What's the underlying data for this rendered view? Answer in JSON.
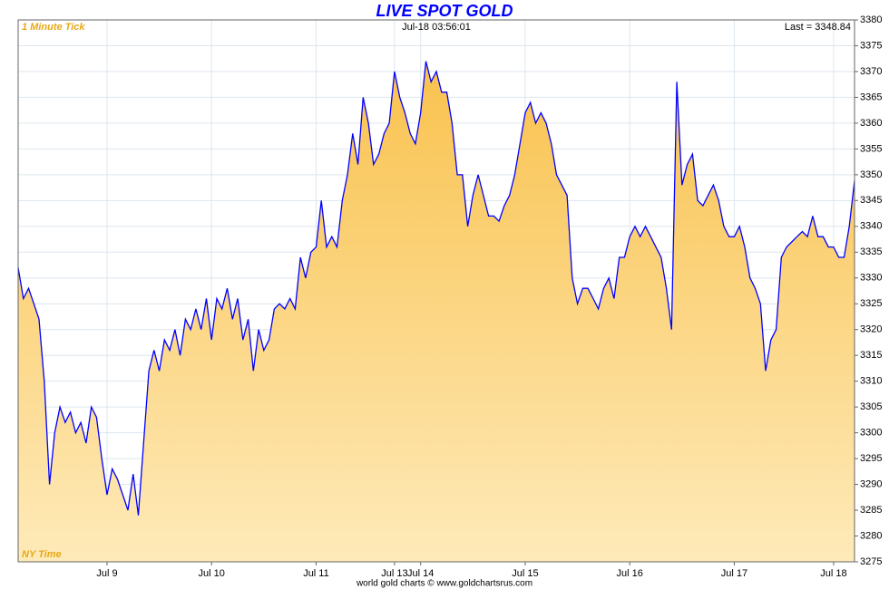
{
  "chart_data": {
    "type": "area",
    "title": "LIVE SPOT GOLD",
    "subtitle": "Jul-18  03:56:01",
    "resolution_label": "1 Minute Tick",
    "last_label": "Last = 3348.84",
    "timezone_label": "NY Time",
    "footer": "world gold charts © www.goldchartsrus.com",
    "color": "#0000ff",
    "fill_top": "#f9c24e",
    "fill_bottom": "#feeab9",
    "grid": true,
    "xlim": [
      0,
      160
    ],
    "xticks": [
      {
        "value": 17,
        "label": "Jul 9"
      },
      {
        "value": 37,
        "label": "Jul 10"
      },
      {
        "value": 57,
        "label": "Jul 11"
      },
      {
        "value": 72,
        "label": "Jul 13"
      },
      {
        "value": 77,
        "label": "Jul 14"
      },
      {
        "value": 97,
        "label": "Jul 15"
      },
      {
        "value": 117,
        "label": "Jul 16"
      },
      {
        "value": 137,
        "label": "Jul 17"
      },
      {
        "value": 156,
        "label": "Jul 18"
      }
    ],
    "ylim": [
      3275,
      3380
    ],
    "yticks": [
      3275,
      3280,
      3285,
      3290,
      3295,
      3300,
      3305,
      3310,
      3315,
      3320,
      3325,
      3330,
      3335,
      3340,
      3345,
      3350,
      3355,
      3360,
      3365,
      3370,
      3375,
      3380
    ],
    "values": [
      3332,
      3326,
      3328,
      3325,
      3322,
      3310,
      3290,
      3300,
      3305,
      3302,
      3304,
      3300,
      3302,
      3298,
      3305,
      3303,
      3295,
      3288,
      3293,
      3291,
      3288,
      3285,
      3292,
      3284,
      3298,
      3312,
      3316,
      3312,
      3318,
      3316,
      3320,
      3315,
      3322,
      3320,
      3324,
      3320,
      3326,
      3318,
      3326,
      3324,
      3328,
      3322,
      3326,
      3318,
      3322,
      3312,
      3320,
      3316,
      3318,
      3324,
      3325,
      3324,
      3326,
      3324,
      3334,
      3330,
      3335,
      3336,
      3345,
      3336,
      3338,
      3336,
      3345,
      3350,
      3358,
      3352,
      3365,
      3360,
      3352,
      3354,
      3358,
      3360,
      3370,
      3365,
      3362,
      3358,
      3356,
      3362,
      3372,
      3368,
      3370,
      3366,
      3366,
      3360,
      3350,
      3350,
      3340,
      3346,
      3350,
      3346,
      3342,
      3342,
      3341,
      3344,
      3346,
      3350,
      3356,
      3362,
      3364,
      3360,
      3362,
      3360,
      3356,
      3350,
      3348,
      3346,
      3330,
      3325,
      3328,
      3328,
      3326,
      3324,
      3328,
      3330,
      3326,
      3334,
      3334,
      3338,
      3340,
      3338,
      3340,
      3338,
      3336,
      3334,
      3328,
      3320,
      3368,
      3348,
      3352,
      3354,
      3345,
      3344,
      3346,
      3348,
      3345,
      3340,
      3338,
      3338,
      3340,
      3336,
      3330,
      3328,
      3325,
      3312,
      3318,
      3320,
      3334,
      3336,
      3337,
      3338,
      3339,
      3338,
      3342,
      3338,
      3338,
      3336,
      3336,
      3334,
      3334,
      3340,
      3348.84
    ]
  }
}
